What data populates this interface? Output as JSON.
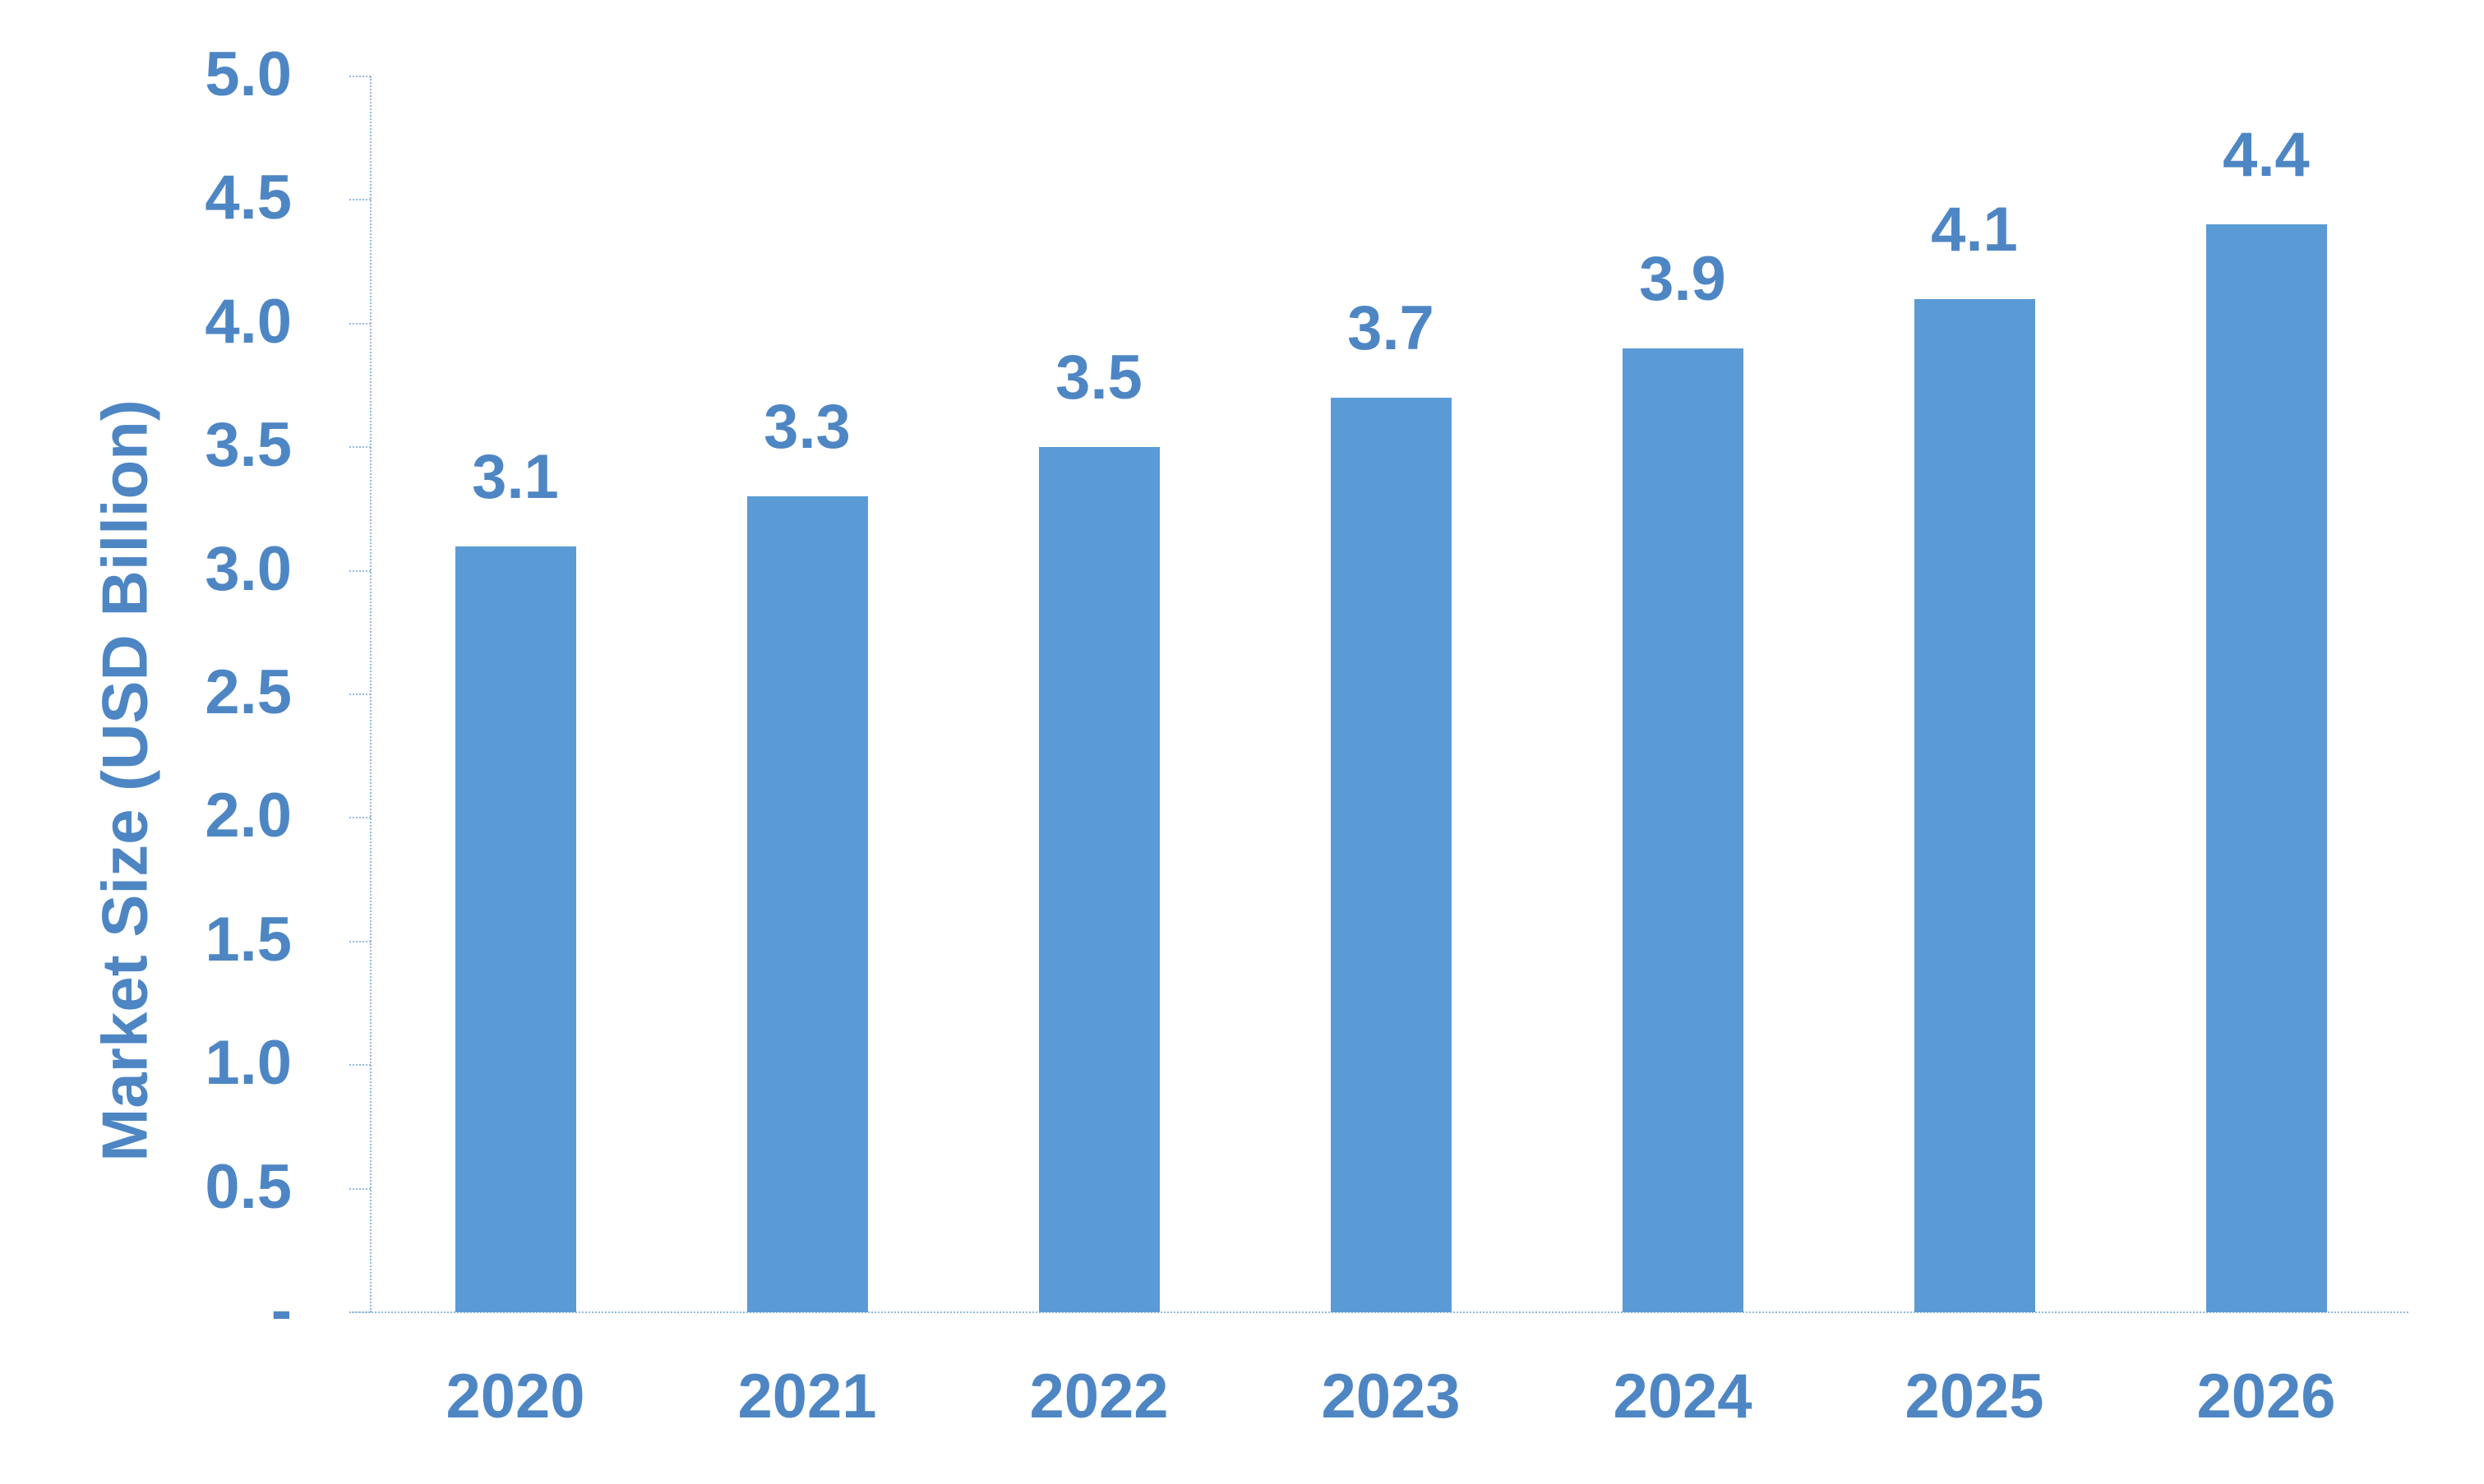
{
  "chart_data": {
    "type": "bar",
    "title": "",
    "xlabel": "",
    "ylabel": "Market Size (USD Billion)",
    "categories": [
      "2020",
      "2021",
      "2022",
      "2023",
      "2024",
      "2025",
      "2026"
    ],
    "values": [
      3.1,
      3.3,
      3.5,
      3.7,
      3.9,
      4.1,
      4.4
    ],
    "data_labels": [
      "3.1",
      "3.3",
      "3.5",
      "3.7",
      "3.9",
      "4.1",
      "4.4"
    ],
    "ylim": [
      0,
      5
    ],
    "yticks": [
      {
        "value": 5.0,
        "label": "5.0"
      },
      {
        "value": 4.5,
        "label": "4.5"
      },
      {
        "value": 4.0,
        "label": "4.0"
      },
      {
        "value": 3.5,
        "label": "3.5"
      },
      {
        "value": 3.0,
        "label": "3.0"
      },
      {
        "value": 2.5,
        "label": "2.5"
      },
      {
        "value": 2.0,
        "label": "2.0"
      },
      {
        "value": 1.5,
        "label": "1.5"
      },
      {
        "value": 1.0,
        "label": "1.0"
      },
      {
        "value": 0.5,
        "label": "0.5"
      },
      {
        "value": 0.0,
        "label": "-"
      }
    ],
    "grid": false,
    "legend_position": "none",
    "colors": {
      "bar": "#5B9BD5",
      "text": "#4E86C4",
      "axis": "#93B8DD",
      "background": "#FFFFFF"
    }
  }
}
